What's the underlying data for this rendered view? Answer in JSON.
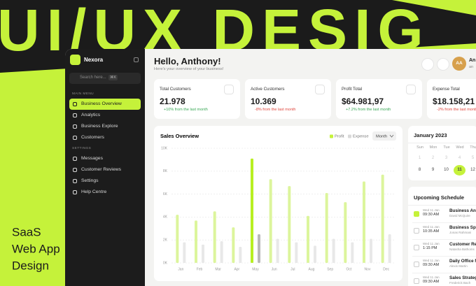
{
  "banner": {
    "headline": "UI/UX DESIG",
    "caption": [
      "SaaS",
      "Web App",
      "Design"
    ]
  },
  "sidebar": {
    "brand": "Nexora",
    "search_placeholder": "Search here...",
    "search_shortcut": "⌘K",
    "sections": [
      {
        "title": "MAIN MENU",
        "items": [
          {
            "label": "Business Overview",
            "active": true
          },
          {
            "label": "Analytics",
            "active": false
          },
          {
            "label": "Business Explore",
            "active": false
          },
          {
            "label": "Customers",
            "active": false
          }
        ]
      },
      {
        "title": "SETTINGS",
        "items": [
          {
            "label": "Messages",
            "active": false
          },
          {
            "label": "Customer Reviews",
            "active": false
          },
          {
            "label": "Settings",
            "active": false
          },
          {
            "label": "Help Centre",
            "active": false
          }
        ]
      }
    ]
  },
  "header": {
    "greeting": "Hello, Anthony!",
    "subtitle": "Here's your overview of your business!",
    "avatar_initials": "AA",
    "user_name": "An",
    "user_role": "an"
  },
  "stats": [
    {
      "label": "Total Customers",
      "value": "21.978",
      "change": "+10% from the last month",
      "trend": "up"
    },
    {
      "label": "Active Customers",
      "value": "10.369",
      "change": "-8% from the last month",
      "trend": "down"
    },
    {
      "label": "Profit Total",
      "value": "$64.981,97",
      "change": "+7.2% from the last month",
      "trend": "up"
    },
    {
      "label": "Expense Total",
      "value": "$18.158,21",
      "change": "-2% from the last month",
      "trend": "down"
    }
  ],
  "chart_data": {
    "type": "bar",
    "title": "Sales Overview",
    "period": "Month",
    "categories": [
      "Jan",
      "Feb",
      "Mar",
      "Apr",
      "May",
      "Jun",
      "Jul",
      "Aug",
      "Sep",
      "Oct",
      "Nov",
      "Dec"
    ],
    "series": [
      {
        "name": "Profit",
        "color": "#c5f23a",
        "colors": [
          "#dcf59c",
          "#dcf59c",
          "#dcf59c",
          "#dcf59c",
          "#b8ef22",
          "#dcf59c",
          "#dcf59c",
          "#dcf59c",
          "#dcf59c",
          "#dcf59c",
          "#dcf59c",
          "#dcf59c"
        ],
        "values": [
          4.2,
          3.7,
          4.5,
          3.1,
          9.1,
          7.3,
          6.7,
          4.1,
          6.1,
          5.3,
          7.1,
          7.7
        ]
      },
      {
        "name": "Expense",
        "color": "#d9d9d9",
        "colors": [
          "#e8e8e8",
          "#e8e8e8",
          "#e8e8e8",
          "#e8e8e8",
          "#b9b9b9",
          "#e8e8e8",
          "#e8e8e8",
          "#e8e8e8",
          "#e8e8e8",
          "#e8e8e8",
          "#e8e8e8",
          "#e8e8e8"
        ],
        "values": [
          1.8,
          1.6,
          1.9,
          1.4,
          2.5,
          2.1,
          1.8,
          1.5,
          2.1,
          1.8,
          2.1,
          2.5
        ]
      }
    ],
    "ylim": [
      0,
      10
    ],
    "yticks": [
      {
        "value": 0,
        "label": "0K"
      },
      {
        "value": 2,
        "label": "2K"
      },
      {
        "value": 4,
        "label": "4K"
      },
      {
        "value": 6,
        "label": "6K"
      },
      {
        "value": 8,
        "label": "8K"
      },
      {
        "value": 10,
        "label": "10K"
      }
    ],
    "grid": true
  },
  "calendar": {
    "title": "January 2023",
    "weekdays": [
      "Sun",
      "Mon",
      "Tue",
      "Wed",
      "Thu"
    ],
    "weeks": [
      [
        1,
        2,
        3,
        4,
        5
      ],
      [
        8,
        9,
        10,
        11,
        12
      ]
    ],
    "selected": 11
  },
  "schedule": {
    "title": "Upcoming Schedule",
    "items": [
      {
        "date": "Wed 11 Jan",
        "time": "09:30 AM",
        "title": "Business Ana",
        "person": "David McQuire",
        "done": true
      },
      {
        "date": "Wed 11 Jan",
        "time": "10:35 AM",
        "title": "Business Spr",
        "person": "Jonas Rahmani",
        "done": false
      },
      {
        "date": "Wed 11 Jan",
        "time": "1:15 PM",
        "title": "Customer Re",
        "person": "Natasha Bathoms",
        "done": false
      },
      {
        "date": "Wed 11 Jan",
        "time": "09:30 AM",
        "title": "Daily Office M",
        "person": "Alexis Martin",
        "done": false
      },
      {
        "date": "Wed 11 Jan",
        "time": "09:30 AM",
        "title": "Sales Strateg",
        "person": "Frederick Bach",
        "done": false
      }
    ]
  }
}
